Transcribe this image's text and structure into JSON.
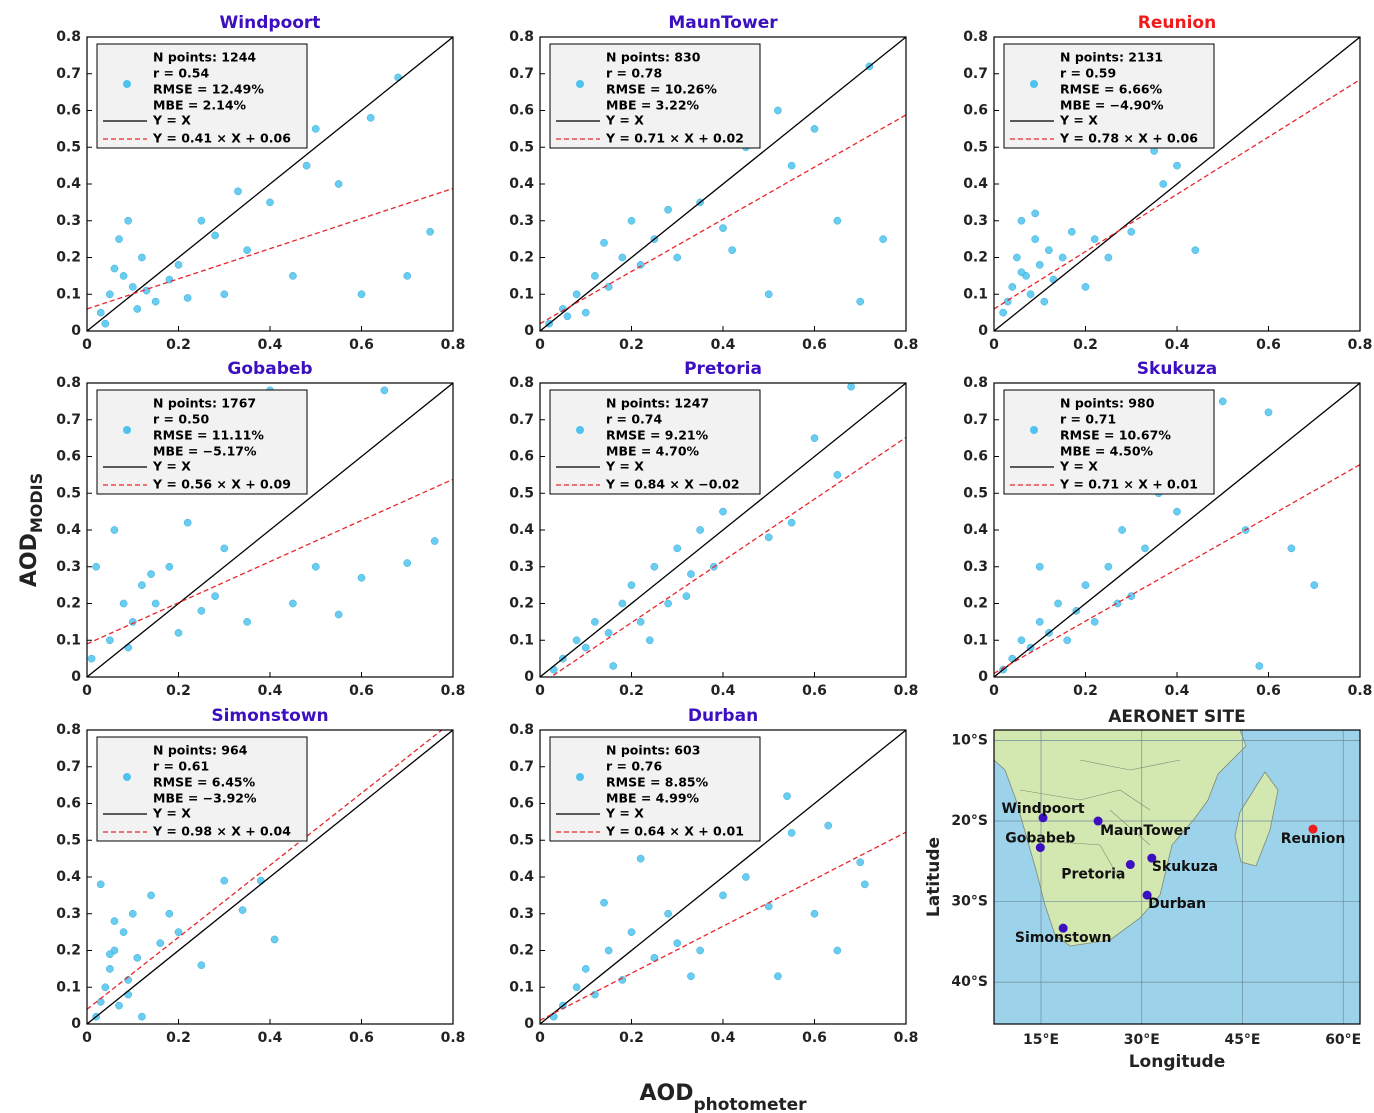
{
  "figure": {
    "y_label": {
      "main": "AOD",
      "sub": "MODIS"
    },
    "x_label": {
      "main": "AOD",
      "sub": "photometer"
    }
  },
  "chart_data": [
    {
      "type": "scatter",
      "title": "Windpoort",
      "title_color": "#3c0fc0",
      "color": "#4fc3ee",
      "x": [
        0.05,
        0.08,
        0.1,
        0.12,
        0.15,
        0.03,
        0.07,
        0.2,
        0.25,
        0.3,
        0.35,
        0.4,
        0.45,
        0.5,
        0.55,
        0.6,
        0.68,
        0.7,
        0.75,
        0.09,
        0.11,
        0.18,
        0.22,
        0.06,
        0.13,
        0.28,
        0.33,
        0.48,
        0.62,
        0.04
      ],
      "y": [
        0.1,
        0.15,
        0.12,
        0.2,
        0.08,
        0.05,
        0.25,
        0.18,
        0.3,
        0.1,
        0.22,
        0.35,
        0.15,
        0.55,
        0.4,
        0.1,
        0.69,
        0.15,
        0.27,
        0.3,
        0.06,
        0.14,
        0.09,
        0.17,
        0.11,
        0.26,
        0.38,
        0.45,
        0.58,
        0.02
      ],
      "xlim": [
        0,
        0.8
      ],
      "ylim": [
        0,
        0.8
      ],
      "xticks": [
        0,
        0.2,
        0.4,
        0.6,
        0.8
      ],
      "yticks": [
        0,
        0.1,
        0.2,
        0.3,
        0.4,
        0.5,
        0.6,
        0.7,
        0.8
      ],
      "stats": [
        "N points: 1244",
        "r = 0.54",
        "RMSE = 12.49%",
        "MBE = 2.14%"
      ],
      "lines": [
        {
          "name": "Y = X",
          "color": "#000000",
          "slope": 1,
          "intercept": 0,
          "style": "solid"
        },
        {
          "name": "Y = 0.41 × X + 0.06",
          "color": "#e8262b",
          "slope": 0.41,
          "intercept": 0.06,
          "style": "dashed"
        }
      ]
    },
    {
      "type": "scatter",
      "title": "MaunTower",
      "title_color": "#3c0fc0",
      "color": "#4fc3ee",
      "x": [
        0.02,
        0.05,
        0.08,
        0.1,
        0.12,
        0.15,
        0.18,
        0.2,
        0.22,
        0.25,
        0.3,
        0.35,
        0.4,
        0.45,
        0.5,
        0.55,
        0.6,
        0.65,
        0.7,
        0.72,
        0.75,
        0.06,
        0.14,
        0.28,
        0.38,
        0.42,
        0.52
      ],
      "y": [
        0.02,
        0.06,
        0.1,
        0.05,
        0.15,
        0.12,
        0.2,
        0.3,
        0.18,
        0.25,
        0.2,
        0.35,
        0.28,
        0.5,
        0.1,
        0.45,
        0.55,
        0.3,
        0.08,
        0.72,
        0.25,
        0.04,
        0.24,
        0.33,
        0.64,
        0.22,
        0.6
      ],
      "xlim": [
        0,
        0.8
      ],
      "ylim": [
        0,
        0.8
      ],
      "xticks": [
        0,
        0.2,
        0.4,
        0.6,
        0.8
      ],
      "yticks": [
        0,
        0.1,
        0.2,
        0.3,
        0.4,
        0.5,
        0.6,
        0.7,
        0.8
      ],
      "stats": [
        "N points: 830",
        "r = 0.78",
        "RMSE = 10.26%",
        "MBE = 3.22%"
      ],
      "lines": [
        {
          "name": "Y = X",
          "color": "#000000",
          "slope": 1,
          "intercept": 0,
          "style": "solid"
        },
        {
          "name": "Y = 0.71 × X + 0.02",
          "color": "#e8262b",
          "slope": 0.71,
          "intercept": 0.02,
          "style": "dashed"
        }
      ]
    },
    {
      "type": "scatter",
      "title": "Reunion",
      "title_color": "#ee1c1c",
      "color": "#4fc3ee",
      "x": [
        0.02,
        0.04,
        0.05,
        0.06,
        0.07,
        0.08,
        0.09,
        0.1,
        0.11,
        0.12,
        0.13,
        0.15,
        0.17,
        0.2,
        0.22,
        0.25,
        0.3,
        0.35,
        0.37,
        0.4,
        0.44,
        0.03,
        0.06,
        0.09
      ],
      "y": [
        0.05,
        0.12,
        0.2,
        0.3,
        0.15,
        0.1,
        0.25,
        0.18,
        0.08,
        0.22,
        0.14,
        0.2,
        0.27,
        0.12,
        0.25,
        0.2,
        0.27,
        0.49,
        0.4,
        0.45,
        0.22,
        0.08,
        0.16,
        0.32
      ],
      "xlim": [
        0,
        0.8
      ],
      "ylim": [
        0,
        0.8
      ],
      "xticks": [
        0,
        0.2,
        0.4,
        0.6,
        0.8
      ],
      "yticks": [
        0,
        0.1,
        0.2,
        0.3,
        0.4,
        0.5,
        0.6,
        0.7,
        0.8
      ],
      "stats": [
        "N points: 2131",
        "r = 0.59",
        "RMSE = 6.66%",
        "MBE = −4.90%"
      ],
      "lines": [
        {
          "name": "Y = X",
          "color": "#000000",
          "slope": 1,
          "intercept": 0,
          "style": "solid"
        },
        {
          "name": "Y = 0.78 × X + 0.06",
          "color": "#e8262b",
          "slope": 0.78,
          "intercept": 0.06,
          "style": "dashed"
        }
      ]
    },
    {
      "type": "scatter",
      "title": "Gobabeb",
      "title_color": "#3c0fc0",
      "color": "#4fc3ee",
      "x": [
        0.01,
        0.02,
        0.03,
        0.05,
        0.06,
        0.08,
        0.1,
        0.12,
        0.15,
        0.18,
        0.2,
        0.22,
        0.25,
        0.28,
        0.3,
        0.35,
        0.4,
        0.45,
        0.5,
        0.55,
        0.6,
        0.65,
        0.7,
        0.76,
        0.04,
        0.09,
        0.14
      ],
      "y": [
        0.05,
        0.3,
        0.7,
        0.1,
        0.4,
        0.2,
        0.15,
        0.25,
        0.2,
        0.3,
        0.12,
        0.42,
        0.18,
        0.22,
        0.35,
        0.15,
        0.78,
        0.2,
        0.3,
        0.17,
        0.27,
        0.78,
        0.31,
        0.37,
        0.6,
        0.08,
        0.28
      ],
      "xlim": [
        0,
        0.8
      ],
      "ylim": [
        0,
        0.8
      ],
      "xticks": [
        0,
        0.2,
        0.4,
        0.6,
        0.8
      ],
      "yticks": [
        0,
        0.1,
        0.2,
        0.3,
        0.4,
        0.5,
        0.6,
        0.7,
        0.8
      ],
      "stats": [
        "N points: 1767",
        "r = 0.50",
        "RMSE = 11.11%",
        "MBE = −5.17%"
      ],
      "lines": [
        {
          "name": "Y = X",
          "color": "#000000",
          "slope": 1,
          "intercept": 0,
          "style": "solid"
        },
        {
          "name": "Y = 0.56 × X + 0.09",
          "color": "#e8262b",
          "slope": 0.56,
          "intercept": 0.09,
          "style": "dashed"
        }
      ]
    },
    {
      "type": "scatter",
      "title": "Pretoria",
      "title_color": "#3c0fc0",
      "color": "#4fc3ee",
      "x": [
        0.03,
        0.05,
        0.08,
        0.1,
        0.12,
        0.15,
        0.18,
        0.2,
        0.22,
        0.25,
        0.28,
        0.3,
        0.32,
        0.35,
        0.38,
        0.4,
        0.42,
        0.45,
        0.5,
        0.55,
        0.6,
        0.65,
        0.68,
        0.16,
        0.24,
        0.33
      ],
      "y": [
        0.02,
        0.05,
        0.1,
        0.08,
        0.15,
        0.12,
        0.2,
        0.25,
        0.15,
        0.3,
        0.2,
        0.35,
        0.22,
        0.4,
        0.3,
        0.45,
        0.55,
        0.6,
        0.38,
        0.42,
        0.65,
        0.55,
        0.79,
        0.03,
        0.1,
        0.28
      ],
      "xlim": [
        0,
        0.8
      ],
      "ylim": [
        0,
        0.8
      ],
      "xticks": [
        0,
        0.2,
        0.4,
        0.6,
        0.8
      ],
      "yticks": [
        0,
        0.1,
        0.2,
        0.3,
        0.4,
        0.5,
        0.6,
        0.7,
        0.8
      ],
      "stats": [
        "N points: 1247",
        "r = 0.74",
        "RMSE = 9.21%",
        "MBE = 4.70%"
      ],
      "lines": [
        {
          "name": "Y = X",
          "color": "#000000",
          "slope": 1,
          "intercept": 0,
          "style": "solid"
        },
        {
          "name": "Y = 0.84 × X −0.02",
          "color": "#e8262b",
          "slope": 0.84,
          "intercept": -0.02,
          "style": "dashed"
        }
      ]
    },
    {
      "type": "scatter",
      "title": "Skukuza",
      "title_color": "#3c0fc0",
      "color": "#4fc3ee",
      "x": [
        0.02,
        0.04,
        0.06,
        0.08,
        0.1,
        0.12,
        0.14,
        0.16,
        0.18,
        0.2,
        0.22,
        0.25,
        0.28,
        0.3,
        0.33,
        0.36,
        0.4,
        0.45,
        0.5,
        0.55,
        0.6,
        0.65,
        0.7,
        0.58,
        0.27,
        0.1
      ],
      "y": [
        0.02,
        0.05,
        0.1,
        0.08,
        0.15,
        0.12,
        0.2,
        0.1,
        0.18,
        0.25,
        0.15,
        0.3,
        0.4,
        0.22,
        0.35,
        0.5,
        0.45,
        0.6,
        0.75,
        0.4,
        0.72,
        0.35,
        0.25,
        0.03,
        0.2,
        0.3
      ],
      "xlim": [
        0,
        0.8
      ],
      "ylim": [
        0,
        0.8
      ],
      "xticks": [
        0,
        0.2,
        0.4,
        0.6,
        0.8
      ],
      "yticks": [
        0,
        0.1,
        0.2,
        0.3,
        0.4,
        0.5,
        0.6,
        0.7,
        0.8
      ],
      "stats": [
        "N points: 980",
        "r = 0.71",
        "RMSE = 10.67%",
        "MBE = 4.50%"
      ],
      "lines": [
        {
          "name": "Y = X",
          "color": "#000000",
          "slope": 1,
          "intercept": 0,
          "style": "solid"
        },
        {
          "name": "Y = 0.71 × X + 0.01",
          "color": "#e8262b",
          "slope": 0.71,
          "intercept": 0.01,
          "style": "dashed"
        }
      ]
    },
    {
      "type": "scatter",
      "title": "Simonstown",
      "title_color": "#3c0fc0",
      "color": "#4fc3ee",
      "x": [
        0.02,
        0.03,
        0.04,
        0.05,
        0.06,
        0.07,
        0.08,
        0.09,
        0.1,
        0.11,
        0.12,
        0.14,
        0.16,
        0.18,
        0.2,
        0.25,
        0.3,
        0.34,
        0.38,
        0.41,
        0.03,
        0.06,
        0.09,
        0.05
      ],
      "y": [
        0.02,
        0.38,
        0.1,
        0.15,
        0.2,
        0.05,
        0.25,
        0.12,
        0.3,
        0.18,
        0.02,
        0.35,
        0.22,
        0.3,
        0.25,
        0.16,
        0.39,
        0.31,
        0.39,
        0.23,
        0.06,
        0.28,
        0.08,
        0.19
      ],
      "xlim": [
        0,
        0.8
      ],
      "ylim": [
        0,
        0.8
      ],
      "xticks": [
        0,
        0.2,
        0.4,
        0.6,
        0.8
      ],
      "yticks": [
        0,
        0.1,
        0.2,
        0.3,
        0.4,
        0.5,
        0.6,
        0.7,
        0.8
      ],
      "stats": [
        "N points: 964",
        "r = 0.61",
        "RMSE = 6.45%",
        "MBE = −3.92%"
      ],
      "lines": [
        {
          "name": "Y = X",
          "color": "#000000",
          "slope": 1,
          "intercept": 0,
          "style": "solid"
        },
        {
          "name": "Y = 0.98 × X + 0.04",
          "color": "#e8262b",
          "slope": 0.98,
          "intercept": 0.04,
          "style": "dashed"
        }
      ]
    },
    {
      "type": "scatter",
      "title": "Durban",
      "title_color": "#3c0fc0",
      "color": "#4fc3ee",
      "x": [
        0.03,
        0.05,
        0.08,
        0.1,
        0.12,
        0.15,
        0.18,
        0.2,
        0.22,
        0.25,
        0.28,
        0.3,
        0.35,
        0.4,
        0.45,
        0.5,
        0.52,
        0.54,
        0.55,
        0.6,
        0.63,
        0.65,
        0.7,
        0.71,
        0.14,
        0.33
      ],
      "y": [
        0.02,
        0.05,
        0.1,
        0.15,
        0.08,
        0.2,
        0.12,
        0.25,
        0.45,
        0.18,
        0.3,
        0.22,
        0.2,
        0.35,
        0.4,
        0.32,
        0.13,
        0.62,
        0.52,
        0.3,
        0.54,
        0.2,
        0.44,
        0.38,
        0.33,
        0.13
      ],
      "xlim": [
        0,
        0.8
      ],
      "ylim": [
        0,
        0.8
      ],
      "xticks": [
        0,
        0.2,
        0.4,
        0.6,
        0.8
      ],
      "yticks": [
        0,
        0.1,
        0.2,
        0.3,
        0.4,
        0.5,
        0.6,
        0.7,
        0.8
      ],
      "stats": [
        "N points: 603",
        "r = 0.76",
        "RMSE = 8.85%",
        "MBE = 4.99%"
      ],
      "lines": [
        {
          "name": "Y = X",
          "color": "#000000",
          "slope": 1,
          "intercept": 0,
          "style": "solid"
        },
        {
          "name": "Y = 0.64 × X + 0.01",
          "color": "#e8262b",
          "slope": 0.64,
          "intercept": 0.01,
          "style": "dashed"
        }
      ]
    },
    {
      "type": "map",
      "title": "AERONET SITE",
      "xlabel": "Longitude",
      "ylabel": "Latitude",
      "xlim": [
        8,
        62.5
      ],
      "ylim": [
        -45.2,
        -8.7
      ],
      "grid": true,
      "xticks": [
        {
          "value": 15,
          "label": "15°E"
        },
        {
          "value": 30,
          "label": "30°E"
        },
        {
          "value": 45,
          "label": "45°E"
        },
        {
          "value": 60,
          "label": "60°E"
        }
      ],
      "yticks": [
        {
          "value": -10,
          "label": "10°S"
        },
        {
          "value": -20,
          "label": "20°S"
        },
        {
          "value": -30,
          "label": "30°S"
        },
        {
          "value": -40,
          "label": "40°S"
        }
      ],
      "sites": [
        {
          "name": "Windpoort",
          "lon": 15.3,
          "lat": -19.6,
          "color": "#3c0fc0"
        },
        {
          "name": "MaunTower",
          "lon": 23.5,
          "lat": -20.0,
          "color": "#3c0fc0"
        },
        {
          "name": "Reunion",
          "lon": 55.5,
          "lat": -21.0,
          "color": "#ee1c1c"
        },
        {
          "name": "Gobabeb",
          "lon": 14.9,
          "lat": -23.3,
          "color": "#3c0fc0"
        },
        {
          "name": "Pretoria",
          "lon": 28.3,
          "lat": -25.4,
          "color": "#3c0fc0"
        },
        {
          "name": "Skukuza",
          "lon": 31.5,
          "lat": -24.6,
          "color": "#3c0fc0"
        },
        {
          "name": "Durban",
          "lon": 30.8,
          "lat": -29.2,
          "color": "#3c0fc0"
        },
        {
          "name": "Simonstown",
          "lon": 18.3,
          "lat": -33.3,
          "color": "#3c0fc0"
        }
      ]
    }
  ]
}
